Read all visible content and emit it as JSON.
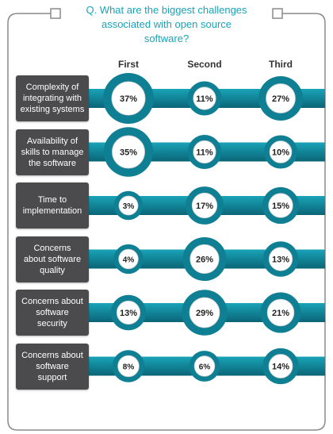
{
  "question": {
    "line1": "Q. What are the biggest challenges",
    "line2": "associated with open source",
    "line3": "software?"
  },
  "colors": {
    "frame": "#8a8a8a",
    "accent": "#1aa3b8",
    "band": "#0f7f94",
    "band_dark": "#0a6576",
    "label_bg": "#4b4b4d",
    "bubble_fill": "#ffffff"
  },
  "chart_data": {
    "type": "bubble-matrix",
    "columns": [
      "First",
      "Second",
      "Third"
    ],
    "rows": [
      {
        "label": [
          "Complexity of",
          "integrating with",
          "existing systems"
        ],
        "values": [
          37,
          11,
          27
        ]
      },
      {
        "label": [
          "Availability of",
          "skills to manage",
          "the software"
        ],
        "values": [
          35,
          11,
          10
        ]
      },
      {
        "label": [
          "Time to",
          "implementation"
        ],
        "values": [
          3,
          17,
          15
        ]
      },
      {
        "label": [
          "Concerns",
          "about software",
          "quality"
        ],
        "values": [
          4,
          26,
          13
        ]
      },
      {
        "label": [
          "Concerns about",
          "software",
          "security"
        ],
        "values": [
          13,
          29,
          21
        ]
      },
      {
        "label": [
          "Concerns about",
          "software",
          "support"
        ],
        "values": [
          8,
          6,
          14
        ]
      }
    ],
    "unit": "%"
  }
}
